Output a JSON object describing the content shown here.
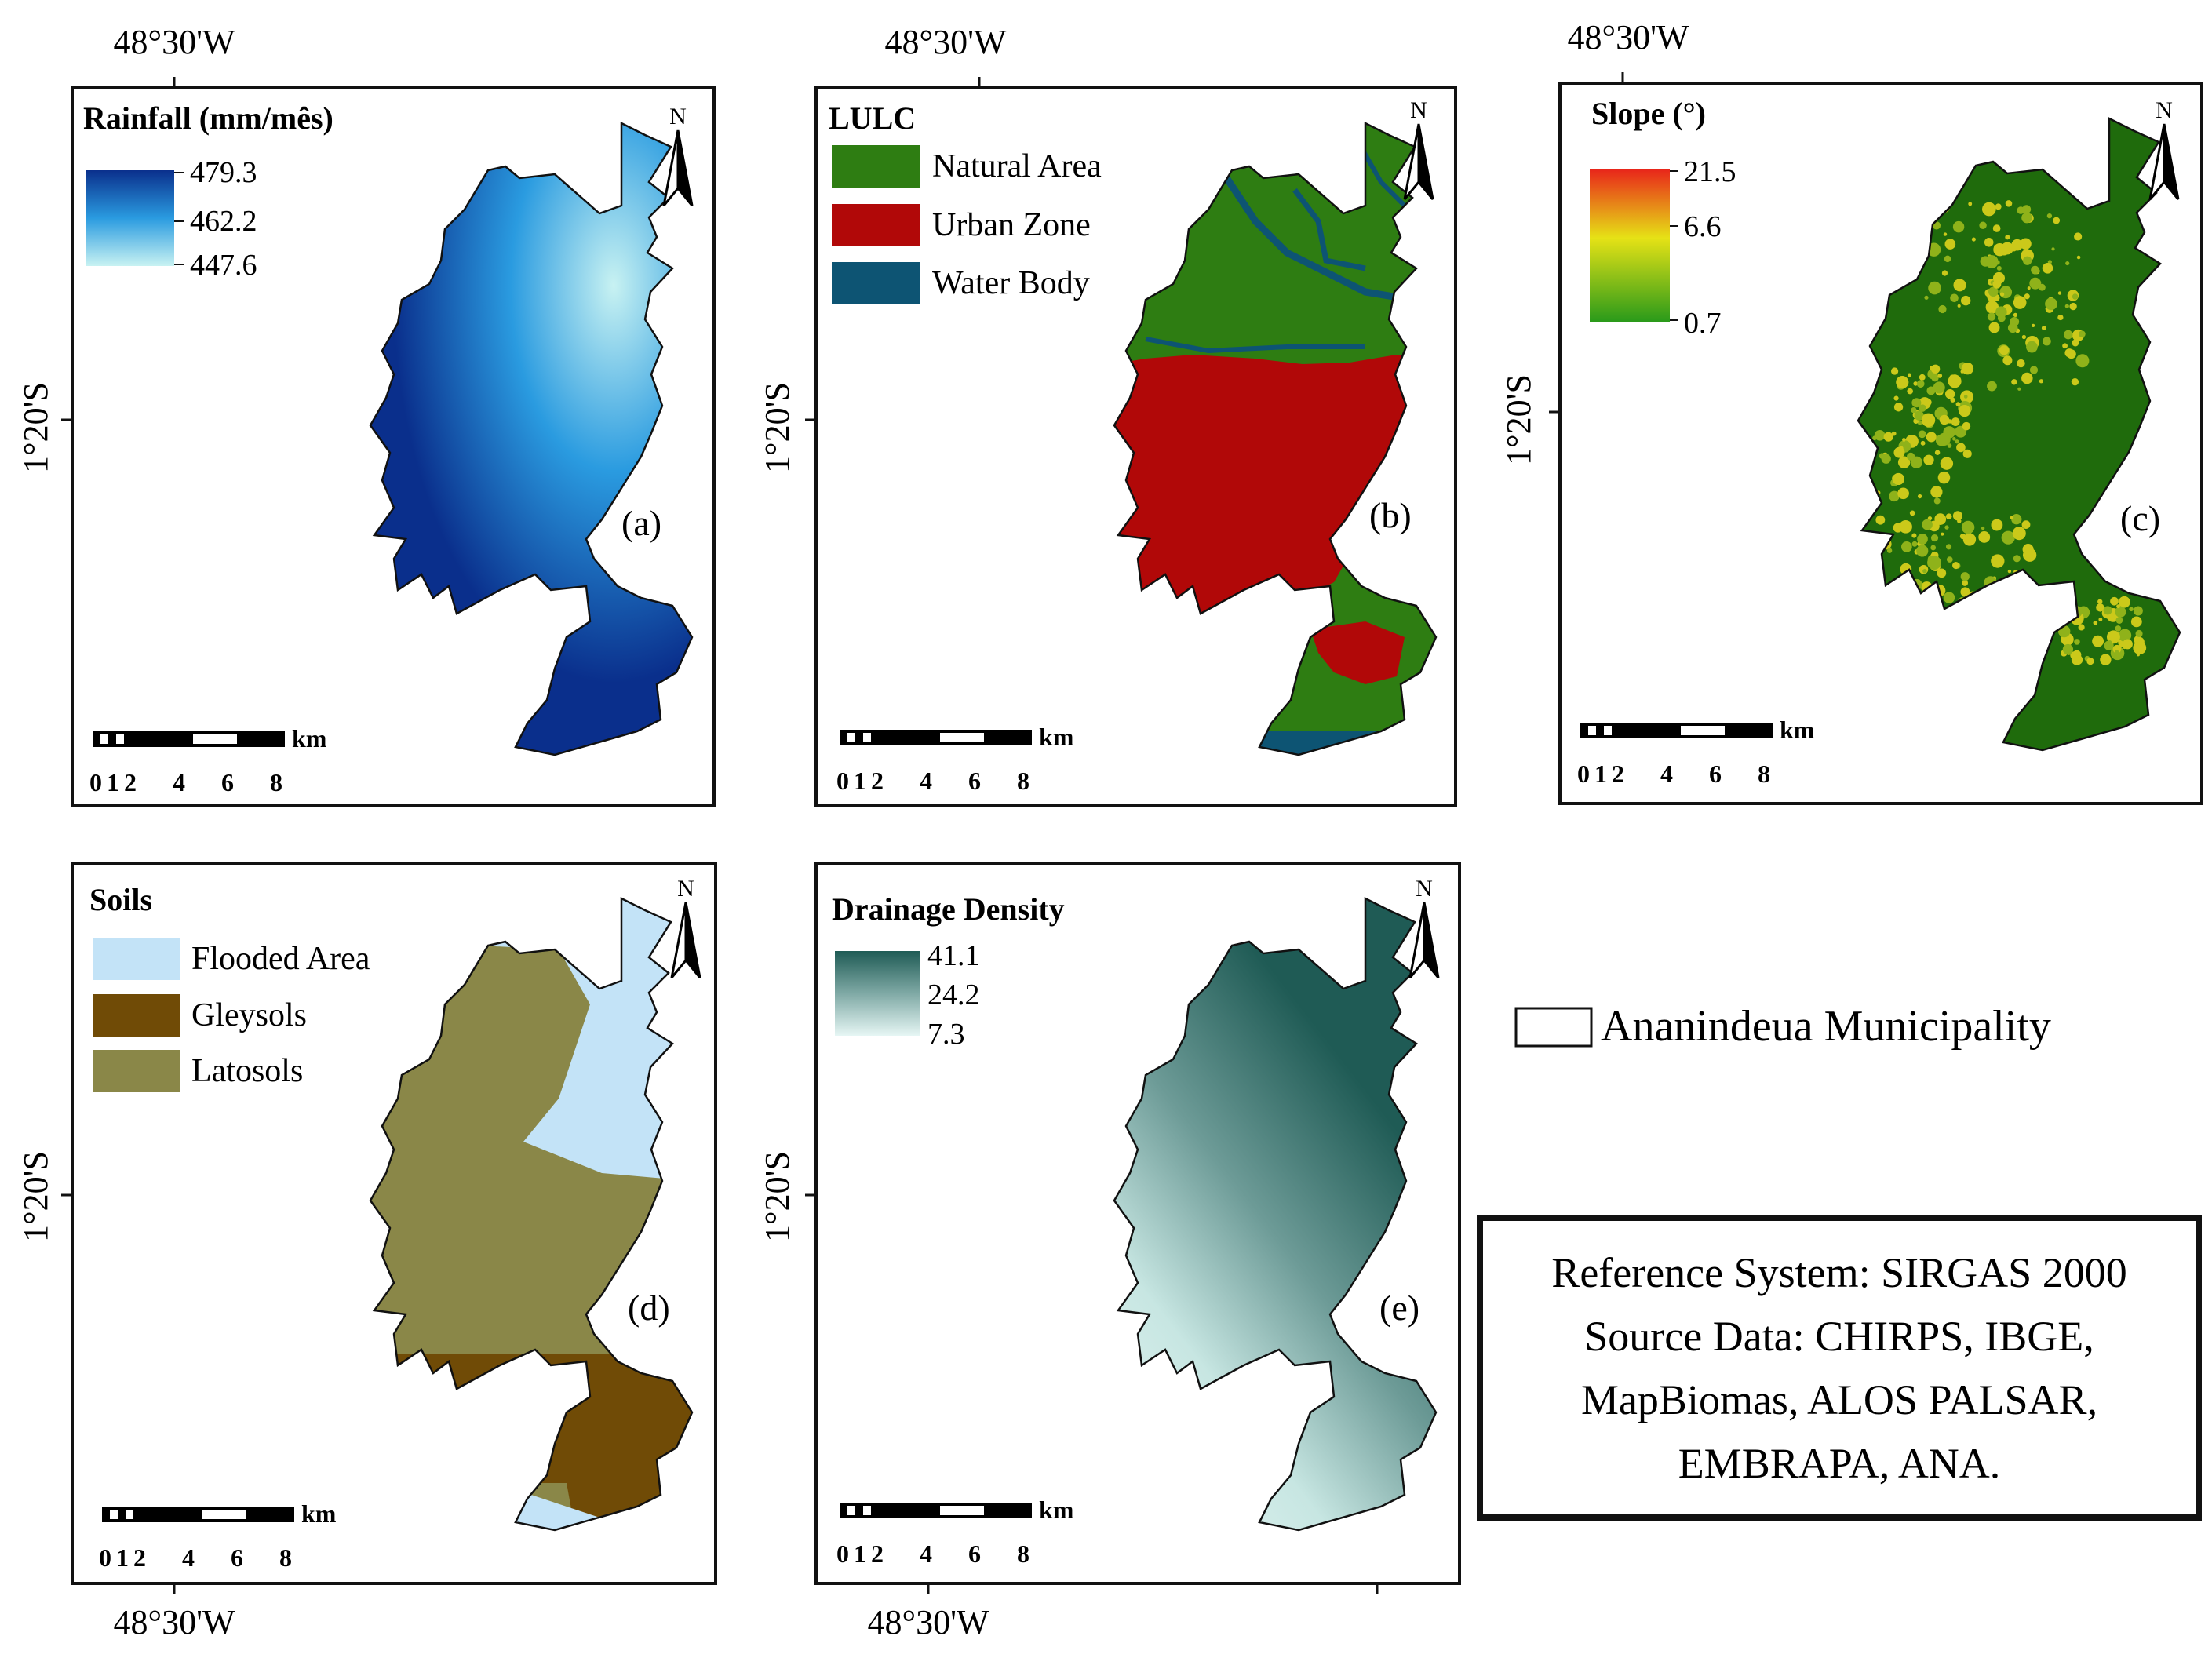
{
  "coords": {
    "lon_label": "48°30'W",
    "lat_label": "1°20'S"
  },
  "north": {
    "letter": "N"
  },
  "scalebar": {
    "unit": "km",
    "ticks": [
      "0",
      "1",
      "2",
      "4",
      "6",
      "8"
    ]
  },
  "panels": {
    "a": {
      "tag": "(a)",
      "legend_title": "Rainfall (mm/mês)",
      "values": [
        "479.3",
        "462.2",
        "447.6"
      ],
      "colors": {
        "high": "#0a2f8c",
        "mid": "#2a9be0",
        "low": "#c8f2f2"
      }
    },
    "b": {
      "tag": "(b)",
      "legend_title": "LULC",
      "classes": [
        {
          "label": "Natural Area",
          "color": "#2e7d12"
        },
        {
          "label": "Urban Zone",
          "color": "#b10808"
        },
        {
          "label": "Water Body",
          "color": "#0d5473"
        }
      ]
    },
    "c": {
      "tag": "(c)",
      "legend_title": "Slope (°)",
      "values": [
        "21.5",
        "6.6",
        "0.7"
      ],
      "colors": {
        "high": "#e8261a",
        "mid": "#e6e216",
        "low": "#2a9a1a",
        "base": "#1f6b0c"
      }
    },
    "d": {
      "tag": "(d)",
      "legend_title": "Soils",
      "classes": [
        {
          "label": "Flooded Area",
          "color": "#c3e3f7"
        },
        {
          "label": "Gleysols",
          "color": "#704b06"
        },
        {
          "label": "Latosols",
          "color": "#8a8748"
        }
      ]
    },
    "e": {
      "tag": "(e)",
      "legend_title": "Drainage Density",
      "values": [
        "41.1",
        "24.2",
        "7.3"
      ],
      "colors": {
        "high": "#1f5b55",
        "mid": "#7fa9a5",
        "low": "#e6f6f4"
      }
    }
  },
  "outline_legend": {
    "label": "Ananindeua Municipality"
  },
  "reference_box": {
    "lines": [
      "Reference System: SIRGAS 2000",
      "Source Data: CHIRPS, IBGE,",
      "MapBiomas, ALOS PALSAR,",
      "EMBRAPA, ANA."
    ]
  }
}
